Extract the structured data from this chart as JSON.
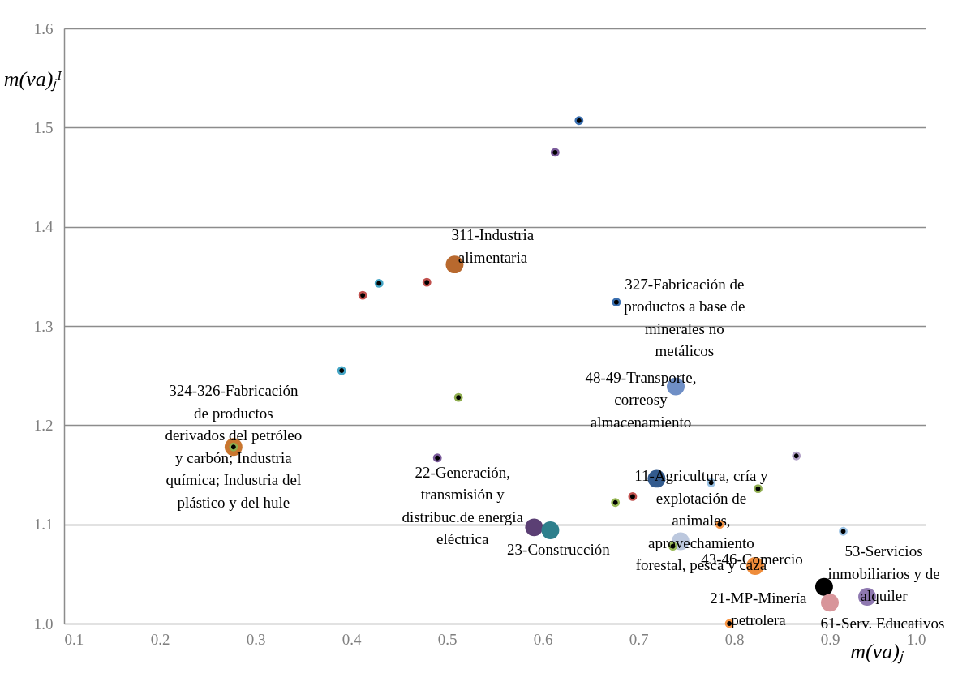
{
  "chart_data": {
    "type": "scatter",
    "xlabel": "m(va)ⱼ",
    "ylabel": "m(va)ⱼᴵ",
    "xlim": [
      0.1,
      1.0
    ],
    "xticks": [
      0.1,
      0.2,
      0.3,
      0.4,
      0.5,
      0.6,
      0.7,
      0.8,
      0.9,
      {
        "value": 1.0,
        "label": "1.0"
      }
    ],
    "ylim": [
      1.0,
      1.6
    ],
    "yticks": [
      {
        "value": 1.0,
        "label": "1.0"
      },
      1.1,
      1.2,
      1.3,
      1.4,
      1.5,
      1.6
    ],
    "grid": "y",
    "marker": "circle",
    "series": [
      {
        "x": [
          0.508,
          0.277,
          0.739,
          0.719,
          0.591,
          0.608,
          0.744,
          0.822,
          0.894,
          0.9,
          0.939
        ],
        "values": [
          1.362,
          1.178,
          1.239,
          1.146,
          1.097,
          1.094,
          1.083,
          1.058,
          1.037,
          1.021,
          1.027
        ],
        "colors": [
          "#b8692e",
          "#c9762f",
          "#6f8fc6",
          "#335b8e",
          "#5b3f74",
          "#2e7f8c",
          "#bcc8de",
          "#ef8c3a",
          "#000000",
          "#d8959a",
          "#8e78b0"
        ]
      },
      {
        "x": [
          0.638,
          0.613,
          0.429,
          0.412,
          0.479,
          0.677,
          0.39,
          0.512,
          0.277,
          0.49,
          0.865,
          0.776,
          0.825,
          0.694,
          0.676,
          0.785,
          0.914,
          0.736,
          0.795
        ],
        "values": [
          1.507,
          1.475,
          1.343,
          1.331,
          1.344,
          1.324,
          1.255,
          1.228,
          1.178,
          1.167,
          1.169,
          1.142,
          1.136,
          1.128,
          1.122,
          1.1,
          1.093,
          1.078,
          1.0
        ],
        "colors": [
          "#3a6fb0",
          "#7a5a9a",
          "#45a6c6",
          "#c0504d",
          "#c0504d",
          "#3a6fb0",
          "#45a6c6",
          "#8fad4f",
          "#8fad4f",
          "#7a5a9a",
          "#b3a2c7",
          "#9cc3e5",
          "#8fad4f",
          "#c0504d",
          "#9bbb59",
          "#f79646",
          "#9cc3e5",
          "#9bbb59",
          "#f79646"
        ]
      }
    ],
    "annotations": [
      {
        "text": "311-Industria\nalimentaria",
        "x": 0.508,
        "y": 1.362
      },
      {
        "text": "327-Fabricación de\nproductos a base de\nminerales no\nmetálicos",
        "x": 0.677,
        "y": 1.324
      },
      {
        "text": "324-326-Fabricación\nde productos\nderivados del petróleo\ny carbón; Industria\nquímica; Industria del\nplástico y del hule",
        "x": 0.277,
        "y": 1.178
      },
      {
        "text": "48-49-Transporte,\ncorreosy\nalmacenamiento",
        "x": 0.739,
        "y": 1.239
      },
      {
        "text": "22-Generación,\ntransmisión y\ndistribuc.de energía\neléctrica",
        "x": 0.49,
        "y": 1.167
      },
      {
        "text": "23-Construcción",
        "x": 0.608,
        "y": 1.094
      },
      {
        "text": "11-Agricultura, cría y\nexplotación de\nanimales,\naprovechamiento\nforestal, pesca y caza",
        "x": 0.719,
        "y": 1.146
      },
      {
        "text": "43-46-Comercio",
        "x": 0.822,
        "y": 1.058
      },
      {
        "text": "21-MP-Minería\npetrolera",
        "x": 0.894,
        "y": 1.037
      },
      {
        "text": "53-Servicios\ninmobiliarios y de\nalquiler",
        "x": 0.914,
        "y": 1.093
      },
      {
        "text": "61-Serv. Educativos",
        "x": 0.9,
        "y": 1.021
      }
    ]
  }
}
